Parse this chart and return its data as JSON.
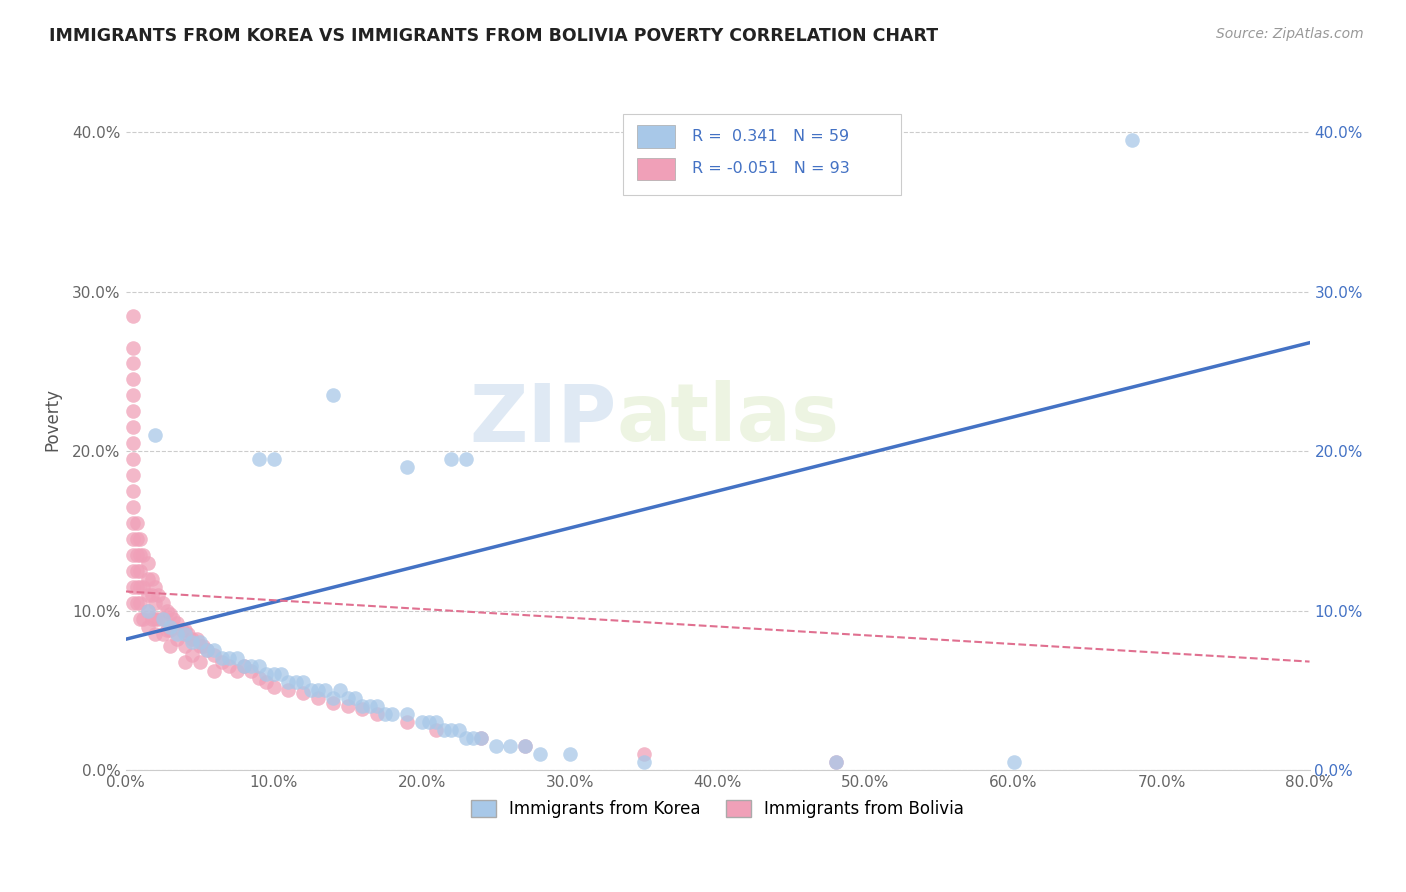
{
  "title": "IMMIGRANTS FROM KOREA VS IMMIGRANTS FROM BOLIVIA POVERTY CORRELATION CHART",
  "source": "Source: ZipAtlas.com",
  "ylabel_label": "Poverty",
  "xlim": [
    0.0,
    0.8
  ],
  "ylim": [
    0.0,
    0.44
  ],
  "ytick_vals": [
    0.0,
    0.1,
    0.2,
    0.3,
    0.4
  ],
  "xtick_vals": [
    0.0,
    0.1,
    0.2,
    0.3,
    0.4,
    0.5,
    0.6,
    0.7,
    0.8
  ],
  "legend_korea_label": "Immigrants from Korea",
  "legend_bolivia_label": "Immigrants from Bolivia",
  "R_korea": "0.341",
  "N_korea": "59",
  "R_bolivia": "-0.051",
  "N_bolivia": "93",
  "korea_color": "#a8c8e8",
  "bolivia_color": "#f0a0b8",
  "korea_line_color": "#4472c4",
  "bolivia_line_color": "#e07090",
  "watermark_1": "ZIP",
  "watermark_2": "atlas",
  "korea_scatter_x": [
    0.015,
    0.025,
    0.03,
    0.035,
    0.04,
    0.045,
    0.05,
    0.055,
    0.06,
    0.065,
    0.07,
    0.075,
    0.08,
    0.085,
    0.09,
    0.095,
    0.1,
    0.105,
    0.11,
    0.115,
    0.12,
    0.125,
    0.13,
    0.135,
    0.14,
    0.145,
    0.15,
    0.155,
    0.16,
    0.165,
    0.17,
    0.175,
    0.18,
    0.19,
    0.2,
    0.205,
    0.21,
    0.215,
    0.22,
    0.225,
    0.23,
    0.235,
    0.24,
    0.25,
    0.26,
    0.27,
    0.28,
    0.3,
    0.35,
    0.48,
    0.6,
    0.68,
    0.1,
    0.14,
    0.19,
    0.22,
    0.23,
    0.02,
    0.09
  ],
  "korea_scatter_y": [
    0.1,
    0.095,
    0.09,
    0.085,
    0.085,
    0.08,
    0.08,
    0.075,
    0.075,
    0.07,
    0.07,
    0.07,
    0.065,
    0.065,
    0.065,
    0.06,
    0.06,
    0.06,
    0.055,
    0.055,
    0.055,
    0.05,
    0.05,
    0.05,
    0.045,
    0.05,
    0.045,
    0.045,
    0.04,
    0.04,
    0.04,
    0.035,
    0.035,
    0.035,
    0.03,
    0.03,
    0.03,
    0.025,
    0.025,
    0.025,
    0.02,
    0.02,
    0.02,
    0.015,
    0.015,
    0.015,
    0.01,
    0.01,
    0.005,
    0.005,
    0.005,
    0.395,
    0.195,
    0.235,
    0.19,
    0.195,
    0.195,
    0.21,
    0.195
  ],
  "bolivia_scatter_x": [
    0.005,
    0.005,
    0.005,
    0.005,
    0.005,
    0.005,
    0.005,
    0.005,
    0.005,
    0.005,
    0.005,
    0.005,
    0.005,
    0.005,
    0.005,
    0.005,
    0.005,
    0.005,
    0.008,
    0.008,
    0.008,
    0.008,
    0.008,
    0.008,
    0.01,
    0.01,
    0.01,
    0.01,
    0.01,
    0.01,
    0.012,
    0.012,
    0.012,
    0.015,
    0.015,
    0.015,
    0.015,
    0.015,
    0.018,
    0.018,
    0.018,
    0.02,
    0.02,
    0.02,
    0.02,
    0.022,
    0.022,
    0.025,
    0.025,
    0.025,
    0.028,
    0.028,
    0.03,
    0.03,
    0.03,
    0.032,
    0.035,
    0.035,
    0.038,
    0.04,
    0.04,
    0.04,
    0.042,
    0.045,
    0.045,
    0.048,
    0.05,
    0.05,
    0.052,
    0.055,
    0.06,
    0.06,
    0.065,
    0.07,
    0.075,
    0.08,
    0.085,
    0.09,
    0.095,
    0.1,
    0.11,
    0.12,
    0.13,
    0.14,
    0.15,
    0.16,
    0.17,
    0.19,
    0.21,
    0.24,
    0.27,
    0.35,
    0.48
  ],
  "bolivia_scatter_y": [
    0.285,
    0.265,
    0.255,
    0.245,
    0.235,
    0.225,
    0.215,
    0.205,
    0.195,
    0.185,
    0.175,
    0.165,
    0.155,
    0.145,
    0.135,
    0.125,
    0.115,
    0.105,
    0.155,
    0.145,
    0.135,
    0.125,
    0.115,
    0.105,
    0.145,
    0.135,
    0.125,
    0.115,
    0.105,
    0.095,
    0.135,
    0.115,
    0.095,
    0.13,
    0.12,
    0.11,
    0.1,
    0.09,
    0.12,
    0.11,
    0.095,
    0.115,
    0.105,
    0.095,
    0.085,
    0.11,
    0.095,
    0.105,
    0.095,
    0.085,
    0.1,
    0.088,
    0.098,
    0.088,
    0.078,
    0.095,
    0.092,
    0.082,
    0.088,
    0.088,
    0.078,
    0.068,
    0.085,
    0.082,
    0.072,
    0.082,
    0.078,
    0.068,
    0.078,
    0.075,
    0.072,
    0.062,
    0.068,
    0.065,
    0.062,
    0.065,
    0.062,
    0.058,
    0.055,
    0.052,
    0.05,
    0.048,
    0.045,
    0.042,
    0.04,
    0.038,
    0.035,
    0.03,
    0.025,
    0.02,
    0.015,
    0.01,
    0.005
  ],
  "korea_line_x": [
    0.0,
    0.8
  ],
  "korea_line_y": [
    0.082,
    0.268
  ],
  "bolivia_line_x": [
    0.0,
    0.8
  ],
  "bolivia_line_y": [
    0.112,
    0.068
  ]
}
